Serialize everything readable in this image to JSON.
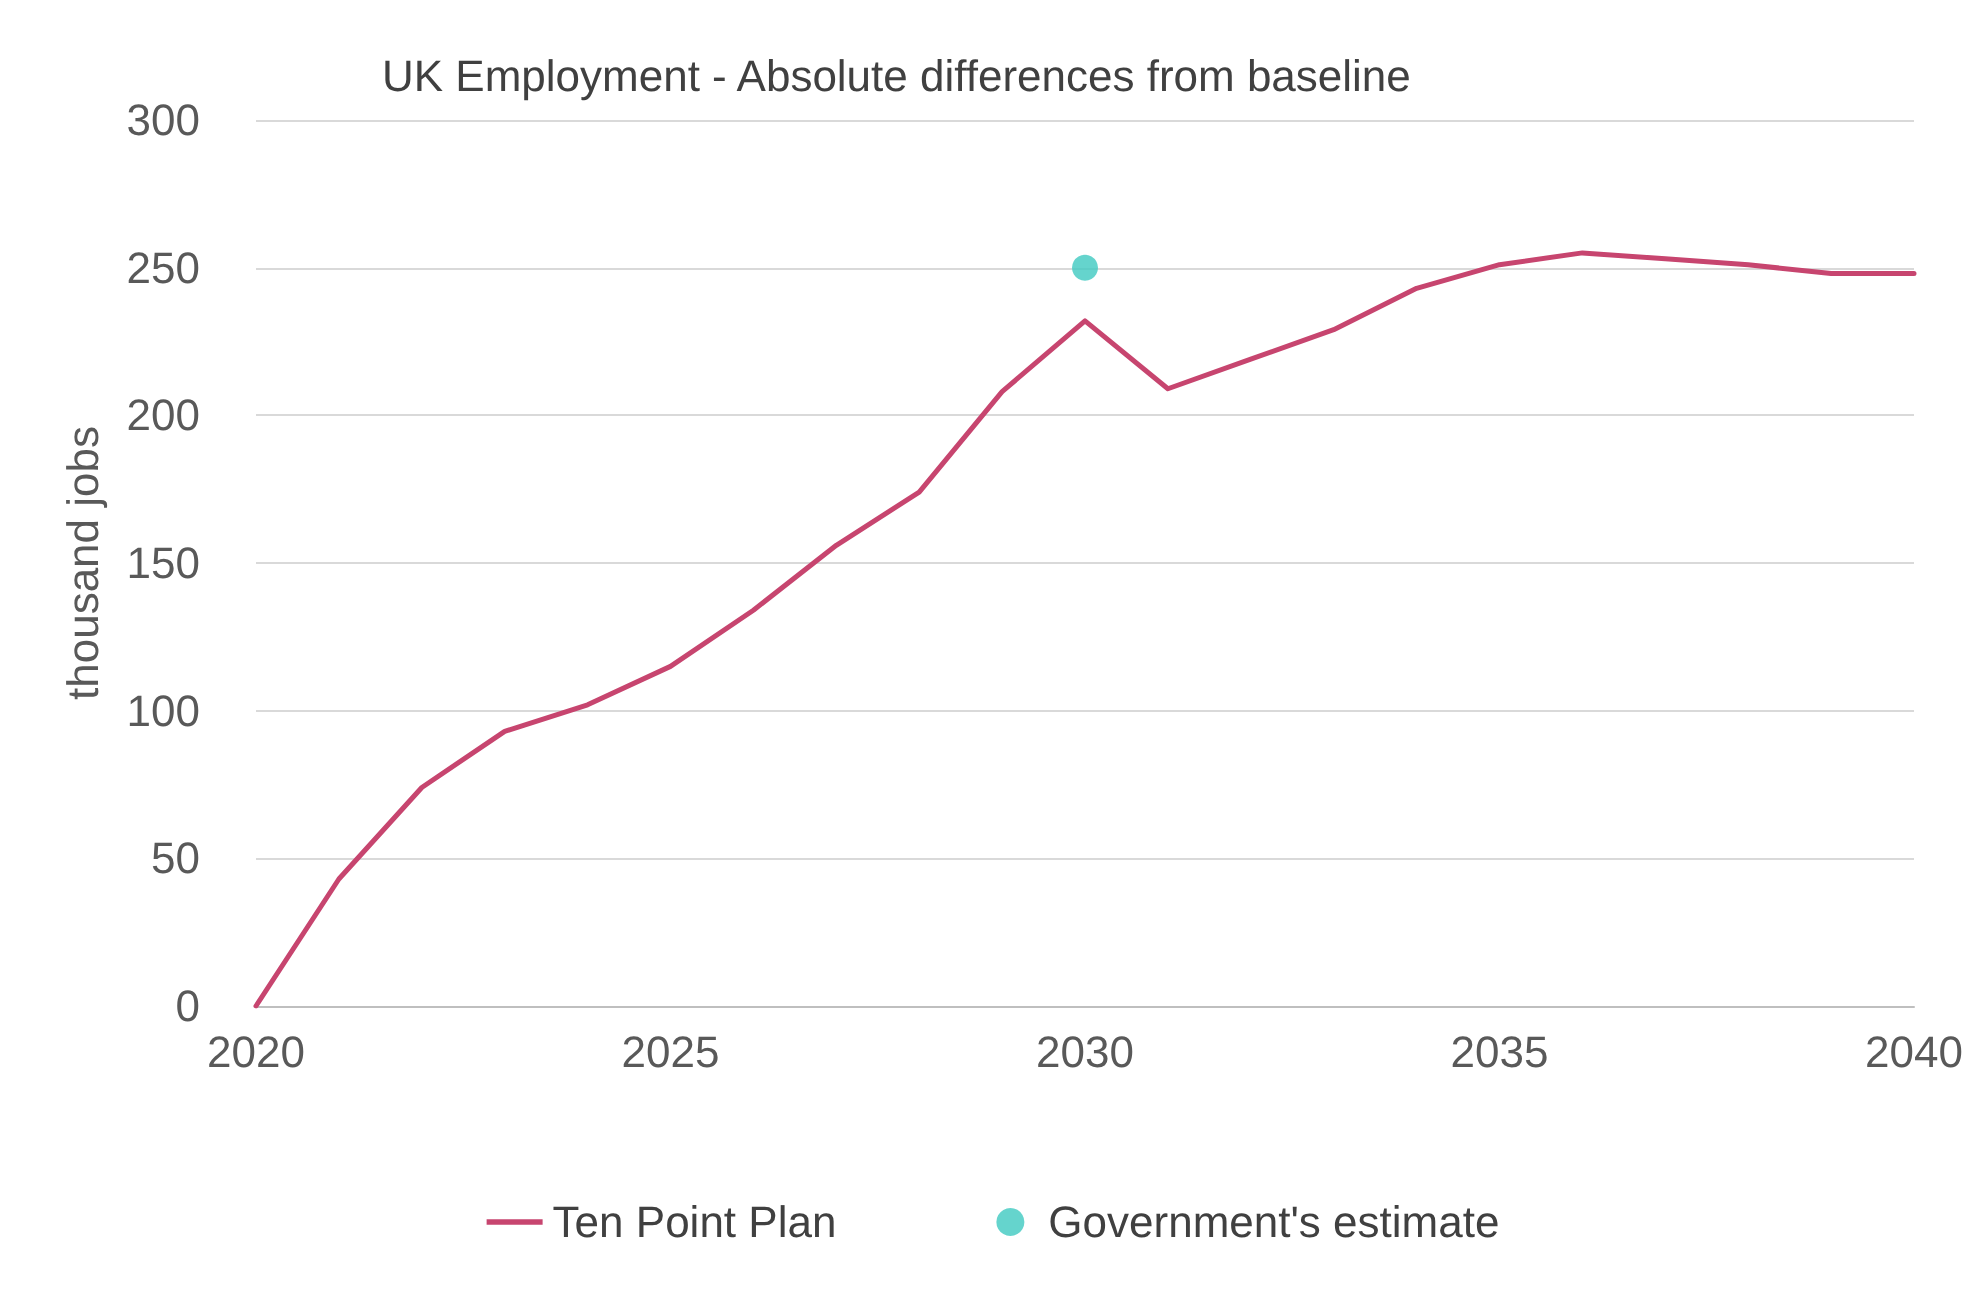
{
  "chart_data": {
    "type": "line",
    "title": "UK Employment - Absolute differences from baseline",
    "ylabel": "thousand jobs",
    "x": [
      2020,
      2021,
      2022,
      2023,
      2024,
      2025,
      2026,
      2027,
      2028,
      2029,
      2030,
      2031,
      2032,
      2033,
      2034,
      2035,
      2036,
      2037,
      2038,
      2039,
      2040
    ],
    "series": [
      {
        "name": "Ten Point Plan",
        "color": "#c7456f",
        "values": [
          0,
          43,
          74,
          93,
          102,
          115,
          134,
          156,
          174,
          208,
          232,
          209,
          219,
          229,
          243,
          251,
          255,
          253,
          251,
          248,
          248
        ]
      },
      {
        "name": "Government's estimate",
        "type": "scatter",
        "marker": "circle",
        "color": "#3ec9c1",
        "x": [
          2030
        ],
        "values": [
          250
        ]
      }
    ],
    "xlim": [
      2020,
      2040
    ],
    "xticks": [
      2020,
      2025,
      2030,
      2035,
      2040
    ],
    "ylim": [
      0,
      300
    ],
    "yticks": [
      0,
      50,
      100,
      150,
      200,
      250,
      300
    ],
    "grid": "y",
    "legend": "bottom",
    "line_style": "solid"
  }
}
